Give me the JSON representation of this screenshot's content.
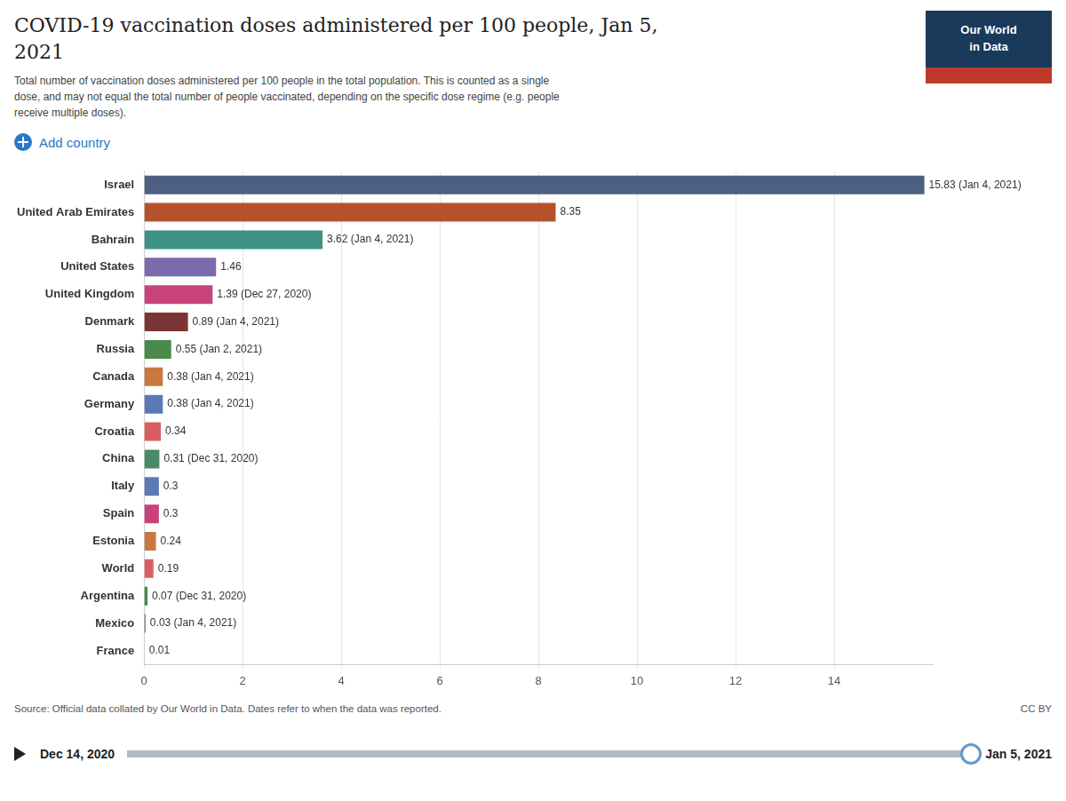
{
  "chart_data": {
    "type": "bar",
    "orientation": "horizontal",
    "title": [
      "COVID-19 vaccination doses administered per 100 people, Jan 5,",
      "2021"
    ],
    "subtitle": "Total number of vaccination doses administered per 100 people in the total population. This is counted as a single\ndose, and may not equal the total number of people vaccinated, depending on the specific dose regime (e.g. people\nreceive multiple doses).",
    "annotations": [
      "Add country",
      "Our World",
      "in Data",
      "Source: Official data collated by Our World in Data. Dates refer to when the data was reported.",
      "CC BY",
      "Dec 14, 2020",
      "Jan 5, 2021"
    ],
    "categories": [
      "Israel",
      "United Arab Emirates",
      "Bahrain",
      "United States",
      "United Kingdom",
      "Denmark",
      "Russia",
      "Canada",
      "Germany",
      "Croatia",
      "China",
      "Italy",
      "Spain",
      "Estonia",
      "World",
      "Argentina",
      "Mexico",
      "France"
    ],
    "values": [
      15.83,
      8.35,
      3.62,
      1.46,
      1.39,
      0.89,
      0.55,
      0.38,
      0.38,
      0.34,
      0.31,
      0.3,
      0.3,
      0.24,
      0.19,
      0.07,
      0.03,
      0.01
    ],
    "value_labels": [
      "15.83 (Jan 4, 2021)",
      "8.35",
      "3.62 (Jan 4, 2021)",
      "1.46",
      "1.39 (Dec 27, 2020)",
      "0.89 (Jan 4, 2021)",
      "0.55 (Jan 2, 2021)",
      "0.38 (Jan 4, 2021)",
      "0.38 (Jan 4, 2021)",
      "0.34",
      "0.31 (Dec 31, 2020)",
      "0.3",
      "0.3",
      "0.24",
      "0.19",
      "0.07 (Dec 31, 2020)",
      "0.03 (Jan 4, 2021)",
      "0.01"
    ],
    "data_labels": true,
    "colors": [
      "#4d6082",
      "#b5522b",
      "#3d9185",
      "#7b6aac",
      "#c7437a",
      "#7a3535",
      "#4a8a4a",
      "#c87941",
      "#5a7ab5",
      "#d95f5f",
      "#4a8a6a",
      "#5a7ab5",
      "#c7437a",
      "#c87941",
      "#d95f5f",
      "#4a8a4a",
      "#4a8a6a",
      "#c87941"
    ],
    "xlim": [
      0,
      16
    ],
    "xticks": [
      0,
      2,
      4,
      6,
      8,
      10,
      12,
      14
    ],
    "grid": true
  }
}
